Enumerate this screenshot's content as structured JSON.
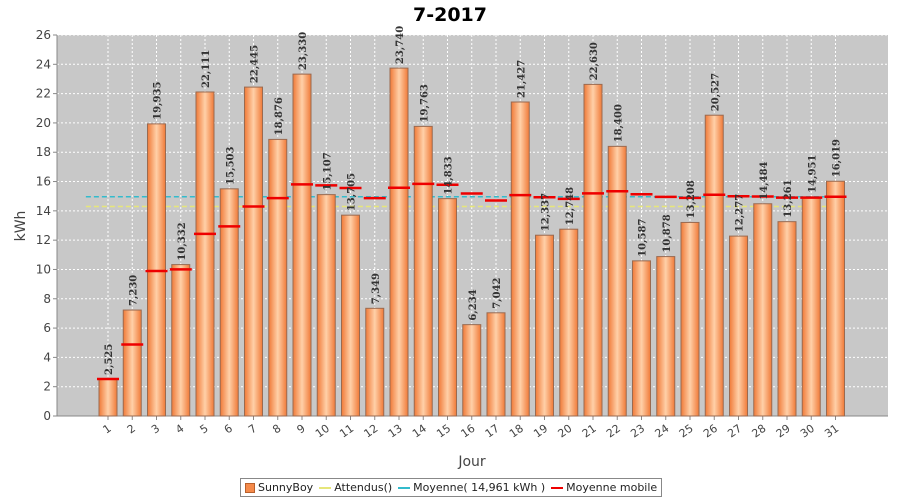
{
  "chart_data": {
    "type": "bar",
    "title": "7-2017",
    "xlabel": "Jour",
    "ylabel": "kWh",
    "ylim": [
      0,
      26
    ],
    "yticks": [
      0,
      2,
      4,
      6,
      8,
      10,
      12,
      14,
      16,
      18,
      20,
      22,
      24,
      26
    ],
    "grid": true,
    "legend_position": "bottom",
    "categories": [
      "1",
      "2",
      "3",
      "4",
      "5",
      "6",
      "7",
      "8",
      "9",
      "10",
      "11",
      "12",
      "13",
      "14",
      "15",
      "16",
      "17",
      "18",
      "19",
      "20",
      "21",
      "22",
      "23",
      "24",
      "25",
      "26",
      "27",
      "28",
      "29",
      "30",
      "31"
    ],
    "series": [
      {
        "name": "SunnyBoy",
        "kind": "bar",
        "color": "#f58a4a",
        "values": [
          2.525,
          7.23,
          19.935,
          10.332,
          22.111,
          15.503,
          22.445,
          18.876,
          23.33,
          15.107,
          13.705,
          7.349,
          23.74,
          19.763,
          14.833,
          6.234,
          7.042,
          21.427,
          12.337,
          12.748,
          22.63,
          18.4,
          10.587,
          10.878,
          13.208,
          20.527,
          12.277,
          14.484,
          13.261,
          14.951,
          16.019
        ],
        "labels": [
          "2,525",
          "7,230",
          "19,935",
          "10,332",
          "22,111",
          "15,503",
          "22,445",
          "18,876",
          "23,330",
          "15,107",
          "13,705",
          "7,349",
          "23,740",
          "19,763",
          "14,833",
          "6,234",
          "7,042",
          "21,427",
          "12,337",
          "12,748",
          "22,630",
          "18,400",
          "10,587",
          "10,878",
          "13,208",
          "20,527",
          "12,277",
          "14,484",
          "13,261",
          "14,951",
          "16,019"
        ]
      },
      {
        "name": "Attendus()",
        "kind": "line",
        "color": "#e6e67a",
        "value": 14.3
      },
      {
        "name": "Moyenne( 14,961 kWh )",
        "kind": "line",
        "color": "#33bbcc",
        "value": 14.961
      },
      {
        "name": "Moyenne mobile",
        "kind": "step",
        "color": "#ee0000",
        "values": [
          2.525,
          4.878,
          9.897,
          10.006,
          12.427,
          12.94,
          14.298,
          14.87,
          15.81,
          15.74,
          15.555,
          14.87,
          15.573,
          15.844,
          15.778,
          15.181,
          14.702,
          15.076,
          14.931,
          14.821,
          15.193,
          15.339,
          15.131,
          14.953,
          14.883,
          15.101,
          14.998,
          14.981,
          14.903,
          14.905,
          14.961
        ]
      }
    ]
  }
}
